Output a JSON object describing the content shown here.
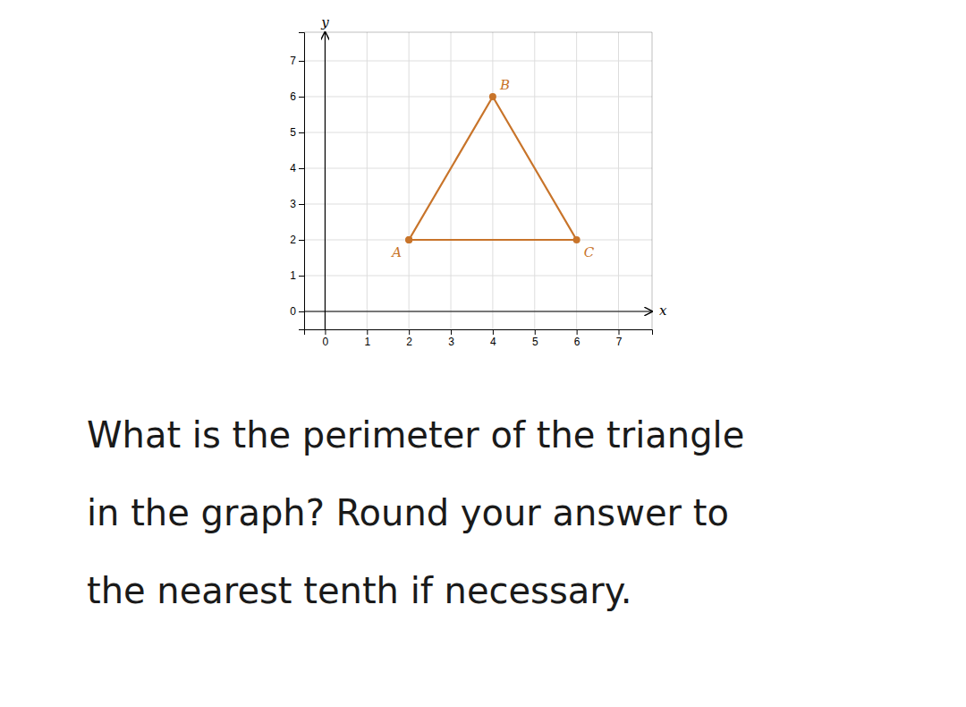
{
  "chart_data": {
    "type": "line",
    "x": [
      2,
      4,
      6,
      2
    ],
    "values": [
      2,
      6,
      2,
      2
    ],
    "color": "#C8742A",
    "marker": "circle",
    "annotations": [
      {
        "text": "A",
        "x": 2,
        "y": 2
      },
      {
        "text": "B",
        "x": 4,
        "y": 6
      },
      {
        "text": "C",
        "x": 6,
        "y": 2
      }
    ],
    "xlabel": "x",
    "ylabel": "y",
    "xlim": [
      -0.5,
      7.8
    ],
    "ylim": [
      -0.5,
      7.8
    ],
    "xticks": [
      0,
      1,
      2,
      3,
      4,
      5,
      6,
      7
    ],
    "yticks": [
      0,
      1,
      2,
      3,
      4,
      5,
      6,
      7
    ],
    "grid": true,
    "caption": [
      "What is the perimeter of the triangle",
      "in the graph? Round your answer to",
      "the nearest tenth if necessary."
    ]
  }
}
